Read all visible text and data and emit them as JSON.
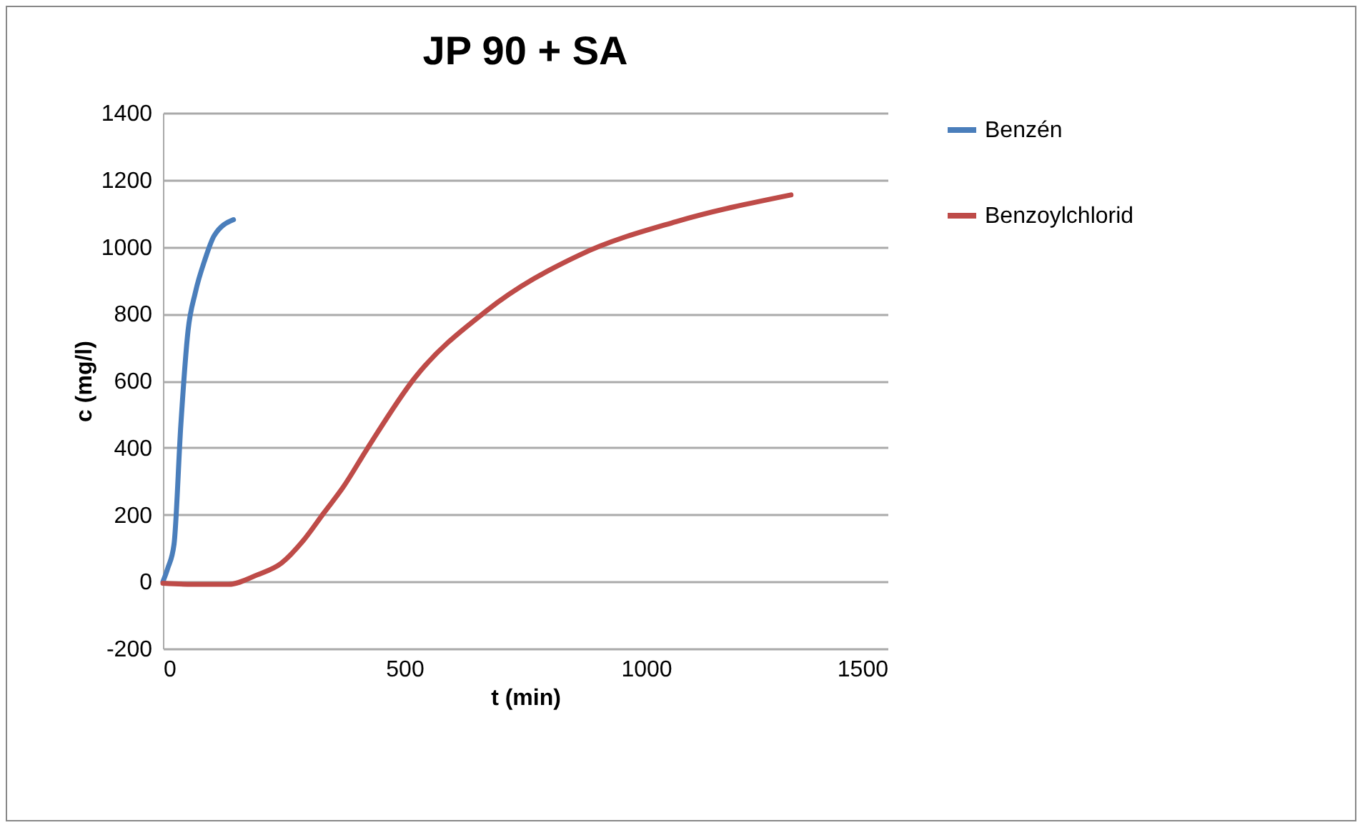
{
  "chart_data": {
    "type": "line",
    "title": "JP 90 + SA",
    "xlabel": "t (min)",
    "ylabel": "c (mg/l)",
    "xlim": [
      0,
      1500
    ],
    "xticks": [
      0,
      500,
      1000,
      1500
    ],
    "ylim": [
      -200,
      1400
    ],
    "yticks": [
      -200,
      0,
      200,
      400,
      600,
      800,
      1000,
      1200,
      1400
    ],
    "grid": "y",
    "legend": "right",
    "marker": "none",
    "series": [
      {
        "name": "Benzén",
        "color": "#4a7ebb",
        "x": [
          0,
          10,
          23,
          37,
          52,
          67,
          87,
          106,
          146
        ],
        "values": [
          0,
          40,
          112,
          467,
          750,
          863,
          962,
          1033,
          1081
        ]
      },
      {
        "name": "Benzoylchlorid",
        "color": "#be4b48",
        "x": [
          0,
          60,
          136,
          195,
          245,
          293,
          333,
          373,
          422,
          521,
          669,
          866,
          1062,
          1300
        ],
        "values": [
          -5,
          -8,
          -8,
          20,
          55,
          127,
          205,
          282,
          395,
          608,
          808,
          978,
          1075,
          1155
        ]
      }
    ]
  }
}
